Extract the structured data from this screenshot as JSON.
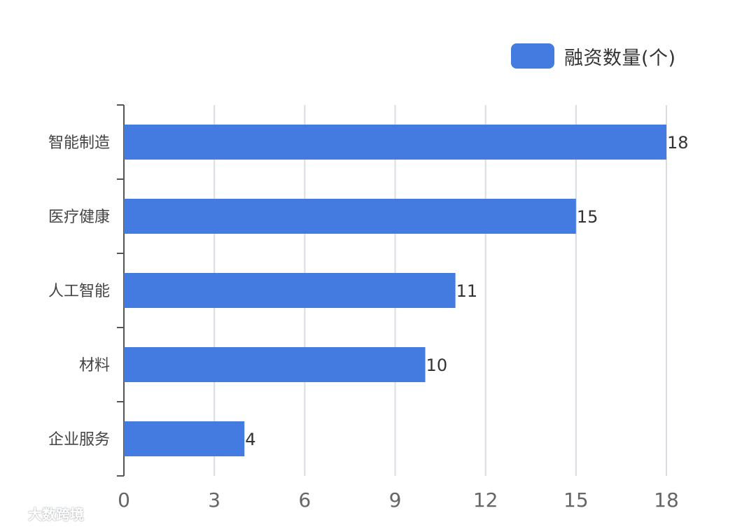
{
  "legend": {
    "label": "融资数量(个)"
  },
  "watermark": {
    "text": "大数跨境"
  },
  "colors": {
    "bar": "#437be0",
    "axis": "#555555",
    "grid": "#d8dde3",
    "tick_label": "#666666",
    "category_label": "#444444",
    "value_label": "#333333"
  },
  "chart_data": {
    "type": "bar",
    "orientation": "horizontal",
    "categories": [
      "智能制造",
      "医疗健康",
      "人工智能",
      "材料",
      "企业服务"
    ],
    "series": [
      {
        "name": "融资数量(个)",
        "values": [
          18,
          15,
          11,
          10,
          4
        ]
      }
    ],
    "data_labels": [
      "18",
      "15",
      "11",
      "10",
      "4"
    ],
    "xlim": [
      0,
      18
    ],
    "x_ticks": [
      0,
      3,
      6,
      9,
      12,
      15,
      18
    ],
    "x_tick_labels": [
      "0",
      "3",
      "6",
      "9",
      "12",
      "15",
      "18"
    ],
    "grid": "vertical",
    "legend_position": "top-right",
    "title": "",
    "xlabel": "",
    "ylabel": ""
  }
}
